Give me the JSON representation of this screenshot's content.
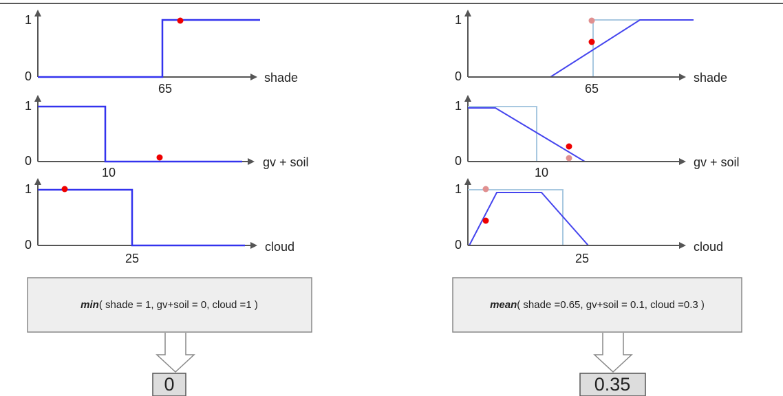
{
  "panels": [
    {
      "plots": [
        {
          "y_top": "1",
          "y_bottom": "0",
          "threshold": "65",
          "axis_label": "shade"
        },
        {
          "y_top": "1",
          "y_bottom": "0",
          "threshold": "10",
          "axis_label": "gv + soil"
        },
        {
          "y_top": "1",
          "y_bottom": "0",
          "threshold": "25",
          "axis_label": "cloud"
        }
      ],
      "formula": {
        "function": "min",
        "args": "( shade = 1, gv+soil = 0, cloud =1 )"
      },
      "result": "0"
    },
    {
      "plots": [
        {
          "y_top": "1",
          "y_bottom": "0",
          "threshold": "65",
          "axis_label": "shade"
        },
        {
          "y_top": "1",
          "y_bottom": "0",
          "threshold": "10",
          "axis_label": "gv + soil"
        },
        {
          "y_top": "1",
          "y_bottom": "0",
          "threshold": "25",
          "axis_label": "cloud"
        }
      ],
      "formula": {
        "function": "mean",
        "args": "( shade =0.65, gv+soil = 0.1, cloud =0.3 )"
      },
      "result": "0.35"
    }
  ]
}
